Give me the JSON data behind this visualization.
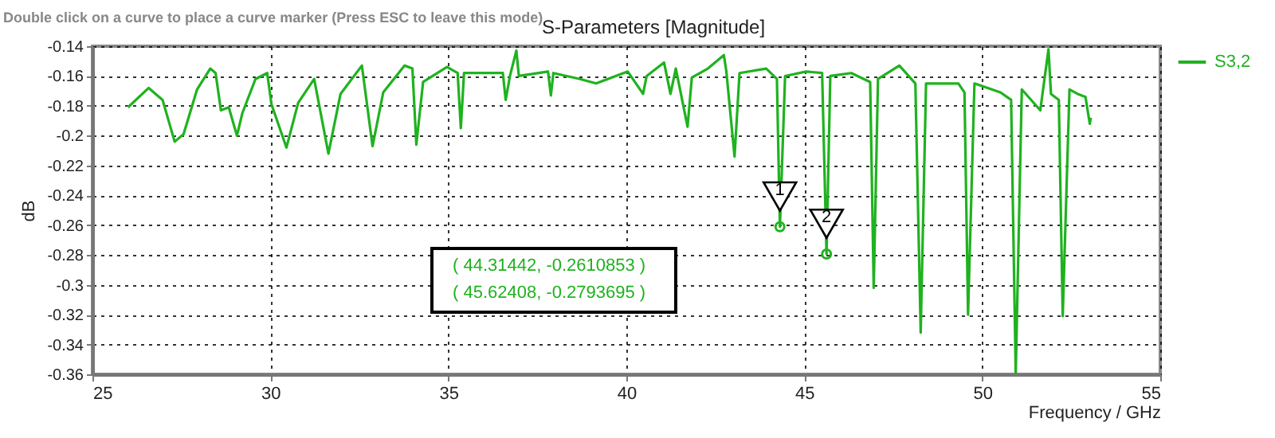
{
  "chart_data": {
    "type": "line",
    "title": "S-Parameters [Magnitude]",
    "xlabel": "Frequency / GHz",
    "ylabel": "dB",
    "x": [
      26.0,
      26.58,
      26.97,
      27.31,
      27.56,
      27.94,
      28.31,
      28.46,
      28.61,
      28.83,
      29.06,
      29.21,
      29.58,
      29.91,
      30.03,
      30.45,
      30.78,
      31.23,
      31.63,
      31.97,
      32.57,
      32.87,
      33.17,
      33.77,
      33.99,
      34.1,
      34.29,
      34.96,
      35.26,
      35.35,
      35.44,
      36.53,
      36.61,
      36.73,
      36.91,
      36.98,
      37.8,
      37.88,
      37.95,
      38.7,
      39.15,
      40.04,
      40.47,
      40.57,
      41.06,
      41.24,
      41.39,
      41.72,
      41.84,
      42.29,
      42.74,
      42.81,
      43.04,
      43.18,
      43.93,
      44.23,
      44.31442,
      44.46,
      45.05,
      45.5,
      45.62408,
      45.73,
      46.32,
      46.85,
      46.95,
      47.07,
      47.67,
      48.12,
      48.27,
      48.42,
      49.33,
      49.5,
      49.6,
      49.78,
      50.51,
      50.81,
      50.94,
      51.11,
      51.63,
      51.86,
      51.93,
      52.15,
      52.26,
      52.45,
      52.68,
      52.9,
      53.02,
      53.05
    ],
    "series": [
      {
        "name": "S3,2",
        "color": "#1fb21f",
        "values": [
          -0.181,
          -0.168,
          -0.176,
          -0.204,
          -0.199,
          -0.169,
          -0.155,
          -0.158,
          -0.183,
          -0.181,
          -0.2,
          -0.185,
          -0.162,
          -0.158,
          -0.179,
          -0.208,
          -0.178,
          -0.162,
          -0.212,
          -0.172,
          -0.153,
          -0.207,
          -0.171,
          -0.153,
          -0.155,
          -0.206,
          -0.164,
          -0.154,
          -0.158,
          -0.195,
          -0.158,
          -0.158,
          -0.176,
          -0.16,
          -0.143,
          -0.16,
          -0.157,
          -0.173,
          -0.158,
          -0.162,
          -0.165,
          -0.157,
          -0.172,
          -0.16,
          -0.151,
          -0.172,
          -0.155,
          -0.194,
          -0.161,
          -0.155,
          -0.146,
          -0.157,
          -0.214,
          -0.158,
          -0.155,
          -0.162,
          -0.2610853,
          -0.16,
          -0.157,
          -0.158,
          -0.2793695,
          -0.16,
          -0.158,
          -0.164,
          -0.302,
          -0.162,
          -0.153,
          -0.165,
          -0.332,
          -0.165,
          -0.165,
          -0.171,
          -0.32,
          -0.165,
          -0.171,
          -0.176,
          -0.36,
          -0.169,
          -0.183,
          -0.142,
          -0.172,
          -0.176,
          -0.321,
          -0.169,
          -0.172,
          -0.174,
          -0.192,
          -0.188
        ]
      }
    ],
    "xlim": [
      25,
      55
    ],
    "xticks": [
      25,
      30,
      35,
      40,
      45,
      50,
      55
    ],
    "ylim": [
      -0.36,
      -0.14
    ],
    "yticks": [
      -0.36,
      -0.34,
      -0.32,
      -0.3,
      -0.28,
      -0.26,
      -0.24,
      -0.22,
      -0.2,
      -0.18,
      -0.16,
      -0.14
    ],
    "grid": true,
    "legend": "top right",
    "annotations": [
      "Double click on a curve to place a curve marker (Press ESC to leave this mode)",
      {
        "text": "1",
        "x": 44.31442,
        "y": -0.2610853
      },
      {
        "text": "2",
        "x": 45.62408,
        "y": -0.2793695
      },
      "( 44.31442, -0.2610853 )",
      "( 45.62408, -0.2793695 )"
    ]
  }
}
